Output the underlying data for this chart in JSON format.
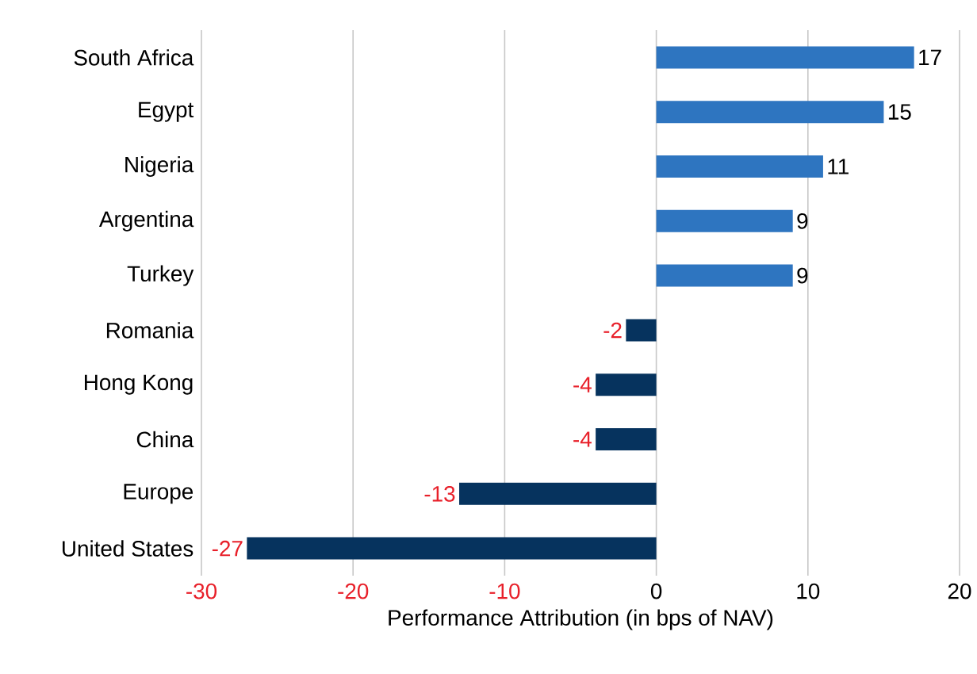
{
  "chart_data": {
    "type": "bar",
    "orientation": "horizontal",
    "categories": [
      "South Africa",
      "Egypt",
      "Nigeria",
      "Argentina",
      "Turkey",
      "Romania",
      "Hong Kong",
      "China",
      "Europe",
      "United States"
    ],
    "values": [
      17,
      15,
      11,
      9,
      9,
      -2,
      -4,
      -4,
      -13,
      -27
    ],
    "colors": [
      "#2e75c0",
      "#2e75c0",
      "#2e75c0",
      "#2e75c0",
      "#2e75c0",
      "#06335e",
      "#06335e",
      "#06335e",
      "#06335e",
      "#06335e"
    ],
    "xlabel": "Performance Attribution (in bps of NAV)",
    "xlim": [
      -30,
      20
    ],
    "xticks": [
      -30,
      -20,
      -10,
      0,
      10,
      20
    ],
    "grid": "x",
    "data_labels": true
  }
}
